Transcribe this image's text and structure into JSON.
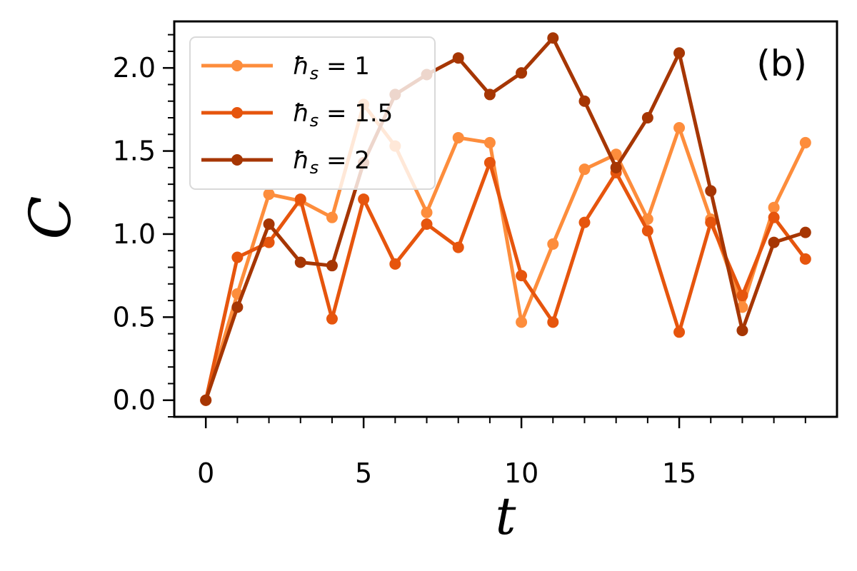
{
  "chart_data": {
    "type": "line",
    "panel_label": "(b)",
    "xlabel": "t",
    "ylabel": "C",
    "xlim": [
      -1,
      20
    ],
    "ylim": [
      -0.1,
      2.28
    ],
    "xticks": [
      0,
      5,
      10,
      15
    ],
    "yticks": [
      0.0,
      0.5,
      1.0,
      1.5,
      2.0
    ],
    "xtick_labels": [
      "0",
      "5",
      "10",
      "15"
    ],
    "ytick_labels": [
      "0.0",
      "0.5",
      "1.0",
      "1.5",
      "2.0"
    ],
    "grid": false,
    "legend_position": "top-left",
    "x": [
      0,
      1,
      2,
      3,
      4,
      5,
      6,
      7,
      8,
      9,
      10,
      11,
      12,
      13,
      14,
      15,
      16,
      17,
      18,
      19
    ],
    "series": [
      {
        "name": "ħ_s = 1",
        "legend_main": "ħ",
        "legend_sub": "s",
        "legend_rest": " = 1",
        "color": "#fd8d3c",
        "values": [
          0.0,
          0.64,
          1.24,
          1.2,
          1.1,
          1.78,
          1.53,
          1.13,
          1.58,
          1.55,
          0.47,
          0.94,
          1.39,
          1.48,
          1.09,
          1.64,
          1.09,
          0.56,
          1.16,
          1.55
        ]
      },
      {
        "name": "ħ_s = 1.5",
        "legend_main": "ħ",
        "legend_sub": "s",
        "legend_rest": " = 1.5",
        "color": "#e6550d",
        "values": [
          0.0,
          0.86,
          0.95,
          1.21,
          0.49,
          1.21,
          0.82,
          1.06,
          0.92,
          1.43,
          0.75,
          0.47,
          1.07,
          1.37,
          1.02,
          0.41,
          1.07,
          0.63,
          1.1,
          0.85
        ]
      },
      {
        "name": "ħ_s = 2",
        "legend_main": "ħ",
        "legend_sub": "s",
        "legend_rest": " = 2",
        "color": "#a63603",
        "values": [
          0.0,
          0.56,
          1.06,
          0.83,
          0.81,
          1.43,
          1.84,
          1.96,
          2.06,
          1.84,
          1.97,
          2.18,
          1.8,
          1.4,
          1.7,
          2.09,
          1.26,
          0.42,
          0.95,
          1.01
        ]
      }
    ]
  }
}
